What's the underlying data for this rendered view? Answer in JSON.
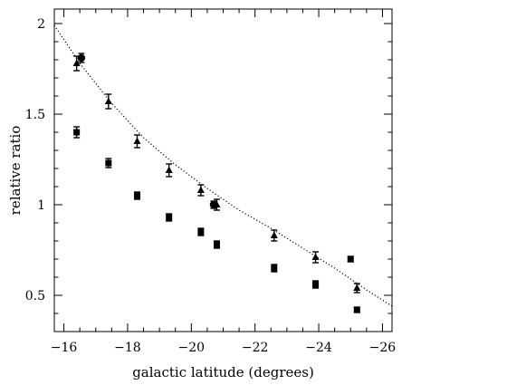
{
  "chart_data": {
    "type": "scatter",
    "title": "",
    "xlabel": "galactic latitude (degrees)",
    "ylabel": "relative ratio",
    "xlim": [
      -15.7,
      -26.3
    ],
    "ylim": [
      0.3,
      2.08
    ],
    "xticks": [
      -16,
      -18,
      -20,
      -22,
      -24,
      -26
    ],
    "xtick_labels": [
      "−16",
      "−18",
      "−20",
      "−22",
      "−24",
      "−26"
    ],
    "yticks": [
      0.5,
      1,
      1.5,
      2
    ],
    "ytick_labels": [
      "0.5",
      "1",
      "1.5",
      "2"
    ],
    "grid": false,
    "legend": "none",
    "series": [
      {
        "marker": "triangle",
        "points": [
          {
            "x": -16.4,
            "y": 1.78,
            "err": 0.04
          },
          {
            "x": -17.4,
            "y": 1.57,
            "err": 0.04
          },
          {
            "x": -18.3,
            "y": 1.35,
            "err": 0.035
          },
          {
            "x": -19.3,
            "y": 1.19,
            "err": 0.035
          },
          {
            "x": -20.3,
            "y": 1.08,
            "err": 0.03
          },
          {
            "x": -20.8,
            "y": 1.0,
            "err": 0.03
          },
          {
            "x": -22.6,
            "y": 0.83,
            "err": 0.03
          },
          {
            "x": -23.9,
            "y": 0.71,
            "err": 0.03
          },
          {
            "x": -25.2,
            "y": 0.54,
            "err": 0.025
          }
        ]
      },
      {
        "marker": "square",
        "points": [
          {
            "x": -16.4,
            "y": 1.4,
            "err": 0.03
          },
          {
            "x": -17.4,
            "y": 1.23,
            "err": 0.025
          },
          {
            "x": -18.3,
            "y": 1.05,
            "err": 0.02
          },
          {
            "x": -19.3,
            "y": 0.93,
            "err": 0.02
          },
          {
            "x": -20.3,
            "y": 0.85,
            "err": 0.02
          },
          {
            "x": -20.8,
            "y": 0.78,
            "err": 0.02
          },
          {
            "x": -22.6,
            "y": 0.65,
            "err": 0.02
          },
          {
            "x": -23.9,
            "y": 0.56,
            "err": 0.02
          },
          {
            "x": -25.0,
            "y": 0.7,
            "err": 0.015
          },
          {
            "x": -25.2,
            "y": 0.42,
            "err": 0.015
          }
        ]
      },
      {
        "marker": "circle",
        "points": [
          {
            "x": -16.55,
            "y": 1.81,
            "err": 0.025
          },
          {
            "x": -20.7,
            "y": 1.0,
            "err": 0.02
          }
        ]
      }
    ],
    "fit_curve": {
      "style": "dotted",
      "x": [
        -15.7,
        -16.5,
        -17.5,
        -18.5,
        -19.5,
        -20.5,
        -21.5,
        -22.5,
        -23.5,
        -24.5,
        -25.5,
        -26.3
      ],
      "y": [
        1.99,
        1.78,
        1.56,
        1.37,
        1.22,
        1.09,
        0.97,
        0.87,
        0.76,
        0.65,
        0.53,
        0.44
      ]
    }
  }
}
